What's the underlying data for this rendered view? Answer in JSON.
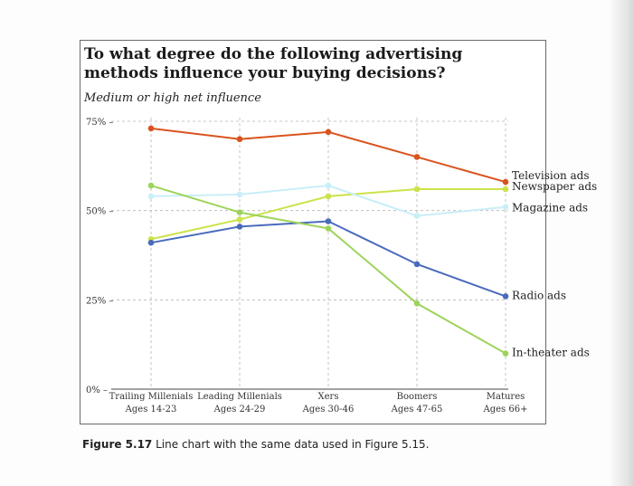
{
  "chart_data": {
    "type": "line",
    "title": "To what degree do the following advertising methods influence your buying decisions?",
    "subtitle": "Medium or high net influence",
    "categories": [
      {
        "name": "Trailing Millenials",
        "ages": "Ages 14-23"
      },
      {
        "name": "Leading Millenials",
        "ages": "Ages 24-29"
      },
      {
        "name": "Xers",
        "ages": "Ages 30-46"
      },
      {
        "name": "Boomers",
        "ages": "Ages 47-65"
      },
      {
        "name": "Matures",
        "ages": "Ages 66+"
      }
    ],
    "y_ticks": [
      {
        "value": 0,
        "label": "0%"
      },
      {
        "value": 25,
        "label": "25%"
      },
      {
        "value": 50,
        "label": "50%"
      },
      {
        "value": 75,
        "label": "75%"
      }
    ],
    "ylim": [
      0,
      75
    ],
    "grid": "dashed",
    "legend_placement": "direct-labels-right",
    "series": [
      {
        "name": "Television ads",
        "color": "#d9531e",
        "values": [
          73,
          70,
          72,
          65,
          58
        ]
      },
      {
        "name": "Newspaper ads",
        "color": "#cde24a",
        "values": [
          42,
          47.5,
          54,
          56,
          56
        ]
      },
      {
        "name": "Magazine ads",
        "color": "#c9eef8",
        "values": [
          54,
          54.5,
          57,
          48.5,
          51
        ]
      },
      {
        "name": "Radio ads",
        "color": "#4a6bbd",
        "values": [
          41,
          45.5,
          47,
          35,
          26
        ]
      },
      {
        "name": "In-theater ads",
        "color": "#9dd35a",
        "values": [
          57,
          49.5,
          45,
          24,
          10
        ]
      }
    ]
  },
  "caption": {
    "label": "Figure 5.17",
    "text": "Line chart with the same data used in Figure 5.15."
  }
}
